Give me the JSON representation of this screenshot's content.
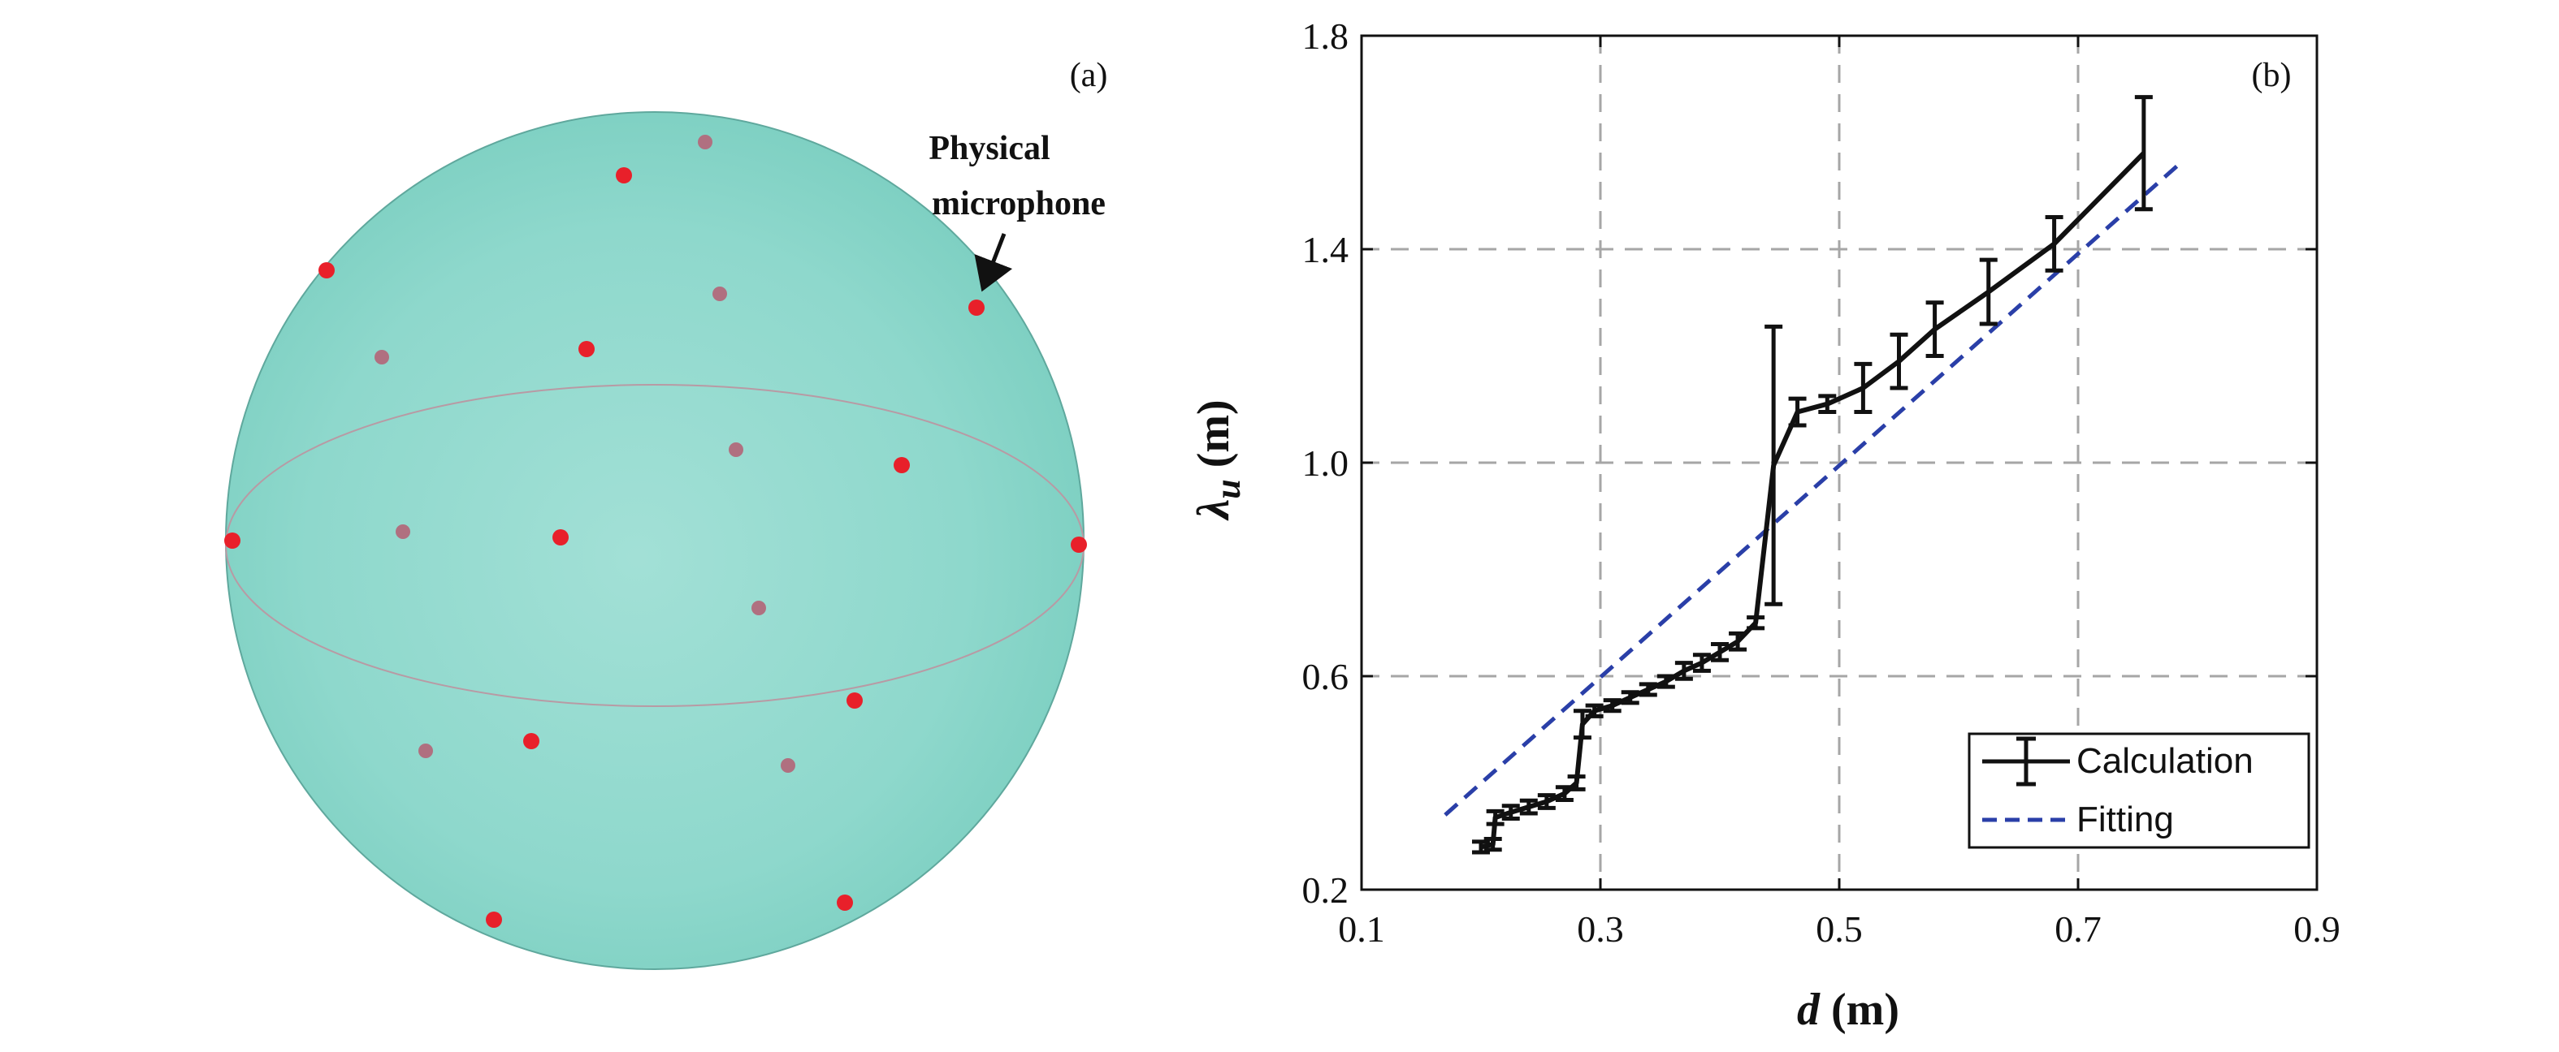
{
  "panel_a": {
    "label": "(a)",
    "annotation_line1": "Physical",
    "annotation_line2": "microphone",
    "sphere_color": "#8ed8cc",
    "front_mic_color": "#e8202a",
    "back_mic_color": "#b07080"
  },
  "chart_data": {
    "type": "line",
    "panel_label": "(b)",
    "xlabel_var": "d",
    "xlabel_unit": " (m)",
    "ylabel_var": "λ",
    "ylabel_sub": "u",
    "ylabel_unit": " (m)",
    "xlim": [
      0.1,
      0.9
    ],
    "ylim": [
      0.2,
      1.8
    ],
    "xticks": [
      "0.1",
      "0.3",
      "0.5",
      "0.7",
      "0.9"
    ],
    "yticks": [
      "0.2",
      "0.6",
      "1.0",
      "1.4",
      "1.8"
    ],
    "grid": true,
    "legend_position": "bottom-right",
    "series": [
      {
        "name": "Calculation",
        "style": "solid-with-errorbars",
        "color": "#111111",
        "x": [
          0.2,
          0.21,
          0.212,
          0.225,
          0.24,
          0.255,
          0.27,
          0.28,
          0.285,
          0.295,
          0.31,
          0.325,
          0.34,
          0.355,
          0.37,
          0.385,
          0.4,
          0.415,
          0.43,
          0.445,
          0.465,
          0.49,
          0.52,
          0.55,
          0.58,
          0.625,
          0.68,
          0.755
        ],
        "y": [
          0.28,
          0.285,
          0.335,
          0.345,
          0.355,
          0.365,
          0.38,
          0.4,
          0.51,
          0.535,
          0.545,
          0.56,
          0.575,
          0.59,
          0.61,
          0.625,
          0.645,
          0.665,
          0.7,
          0.995,
          1.095,
          1.11,
          1.14,
          1.19,
          1.25,
          1.32,
          1.41,
          1.58
        ],
        "err": [
          0.01,
          0.01,
          0.012,
          0.012,
          0.012,
          0.012,
          0.012,
          0.012,
          0.025,
          0.01,
          0.01,
          0.01,
          0.01,
          0.01,
          0.015,
          0.015,
          0.015,
          0.015,
          0.01,
          0.26,
          0.025,
          0.015,
          0.045,
          0.05,
          0.05,
          0.06,
          0.05,
          0.105
        ]
      },
      {
        "name": "Fitting",
        "style": "dashed",
        "color": "#2a3fa8",
        "x": [
          0.17,
          0.785
        ],
        "y": [
          0.34,
          1.56
        ]
      }
    ]
  }
}
